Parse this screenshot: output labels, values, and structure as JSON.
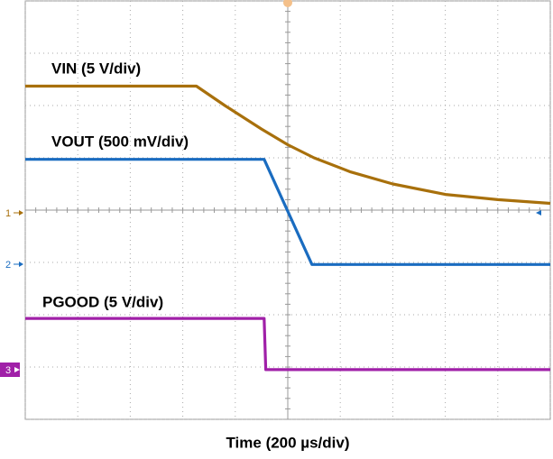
{
  "chart_data": {
    "type": "line",
    "x_label": "Time (200 µs/div)",
    "xlim": [
      0,
      10
    ],
    "ylim": [
      0,
      8
    ],
    "xticks": [
      0,
      1,
      2,
      3,
      4,
      5,
      6,
      7,
      8,
      9,
      10
    ],
    "yticks": [
      0,
      1,
      2,
      3,
      4,
      5,
      6,
      7,
      8
    ],
    "grid": true,
    "channel_markers": [
      "1",
      "2",
      "3"
    ],
    "series": [
      {
        "name": "VIN (5 V/div)",
        "color": "#a8700c",
        "x": [
          0,
          3.26,
          3.8,
          4.5,
          5.0,
          5.5,
          6.2,
          7.0,
          8.0,
          9.0,
          10
        ],
        "values": [
          6.37,
          6.37,
          6.0,
          5.55,
          5.25,
          5.0,
          4.73,
          4.5,
          4.3,
          4.2,
          4.13
        ]
      },
      {
        "name": "VOUT (500 mV/div)",
        "color": "#1a6cc0",
        "x": [
          0,
          4.55,
          5.46,
          10
        ],
        "values": [
          4.97,
          4.97,
          2.96,
          2.96
        ]
      },
      {
        "name": "PGOOD (5 V/div)",
        "color": "#a020a8",
        "x": [
          0,
          4.55,
          4.58,
          10
        ],
        "values": [
          1.93,
          1.93,
          0.95,
          0.95
        ]
      }
    ]
  }
}
